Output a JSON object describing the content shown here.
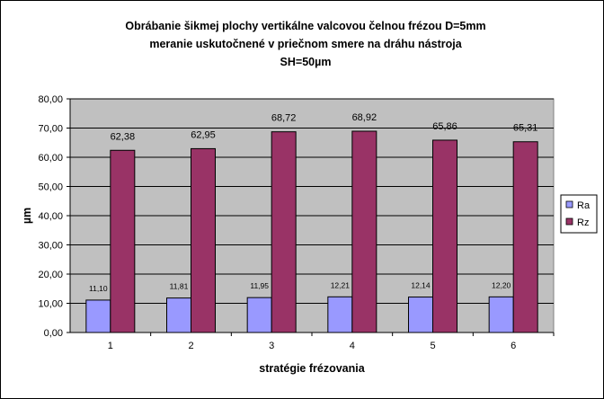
{
  "chart_data": {
    "type": "bar",
    "title_lines": [
      "Obrábanie šikmej plochy vertikálne valcovou čelnou frézou D=5mm",
      "meranie uskutočnené v priečnom smere na dráhu nástroja",
      "SH=50µm"
    ],
    "xlabel": "stratégie frézovania",
    "ylabel": "µm",
    "categories": [
      "1",
      "2",
      "3",
      "4",
      "5",
      "6"
    ],
    "ylim": [
      0,
      80
    ],
    "ytick_step": 10,
    "ytick_labels": [
      "0,00",
      "10,00",
      "20,00",
      "30,00",
      "40,00",
      "50,00",
      "60,00",
      "70,00",
      "80,00"
    ],
    "grid": true,
    "legend_position": "right",
    "series": [
      {
        "name": "Ra",
        "color": "#9999ff",
        "values": [
          11.1,
          11.81,
          11.95,
          12.21,
          12.14,
          12.2
        ],
        "labels": [
          "11,10",
          "11,81",
          "11,95",
          "12,21",
          "12,14",
          "12,20"
        ]
      },
      {
        "name": "Rz",
        "color": "#993366",
        "values": [
          62.38,
          62.95,
          68.72,
          68.92,
          65.86,
          65.31
        ],
        "labels": [
          "62,38",
          "62,95",
          "68,72",
          "68,92",
          "65,86",
          "65,31"
        ]
      }
    ],
    "plot_background": "#c0c0c0"
  }
}
